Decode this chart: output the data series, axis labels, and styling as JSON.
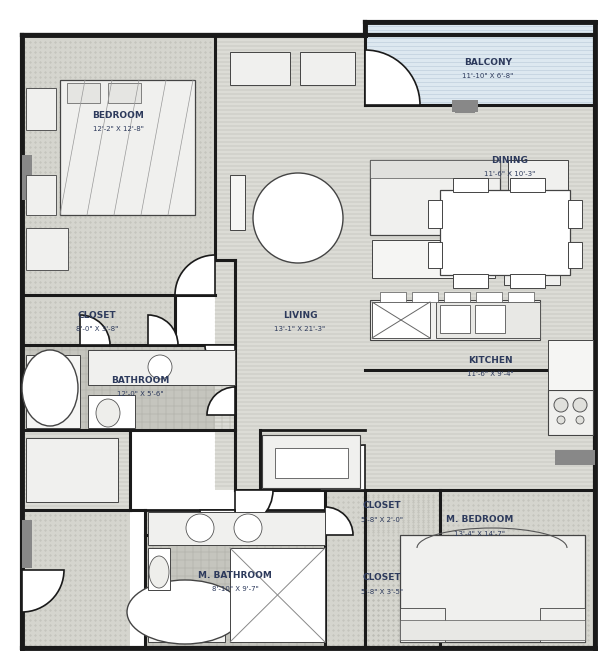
{
  "wall_color": "#1a1a1a",
  "text_color": "#2d3a5c",
  "label_fontsize": 6.5,
  "dim_fontsize": 5.0,
  "dot_fill": "#d5d5ce",
  "stripe_fill": "#dcdcd6",
  "tile_fill": "#c8c8c0",
  "balcony_fill": "#d8e4ee",
  "rooms": {
    "bedroom": {
      "label": "BEDROOM",
      "dim": "12'-2\" X 12'-8\""
    },
    "closet1": {
      "label": "CLOSET",
      "dim": "8'-0\" X 3'-8\""
    },
    "bathroom": {
      "label": "BATHROOM",
      "dim": "12'-0\" X 5'-6\""
    },
    "living": {
      "label": "LIVING",
      "dim": "13'-1\" X 21'-3\""
    },
    "balcony": {
      "label": "BALCONY",
      "dim": "11'-10\" X 6'-8\""
    },
    "dining": {
      "label": "DINING",
      "dim": "11'-6\" X 10'-3\""
    },
    "kitchen": {
      "label": "KITCHEN",
      "dim": "11'-6\" X 9'-4\""
    },
    "m_bedroom": {
      "label": "M. BEDROOM",
      "dim": "13'-4\" X 14'-7\""
    },
    "m_bathroom": {
      "label": "M. BATHROOM",
      "dim": "8'-10\" X 9'-7\""
    },
    "closet2": {
      "label": "CLOSET",
      "dim": "5'-8\" X 2'-0\""
    },
    "closet3": {
      "label": "CLOSET",
      "dim": "5'-8\" X 3'-5\""
    }
  }
}
